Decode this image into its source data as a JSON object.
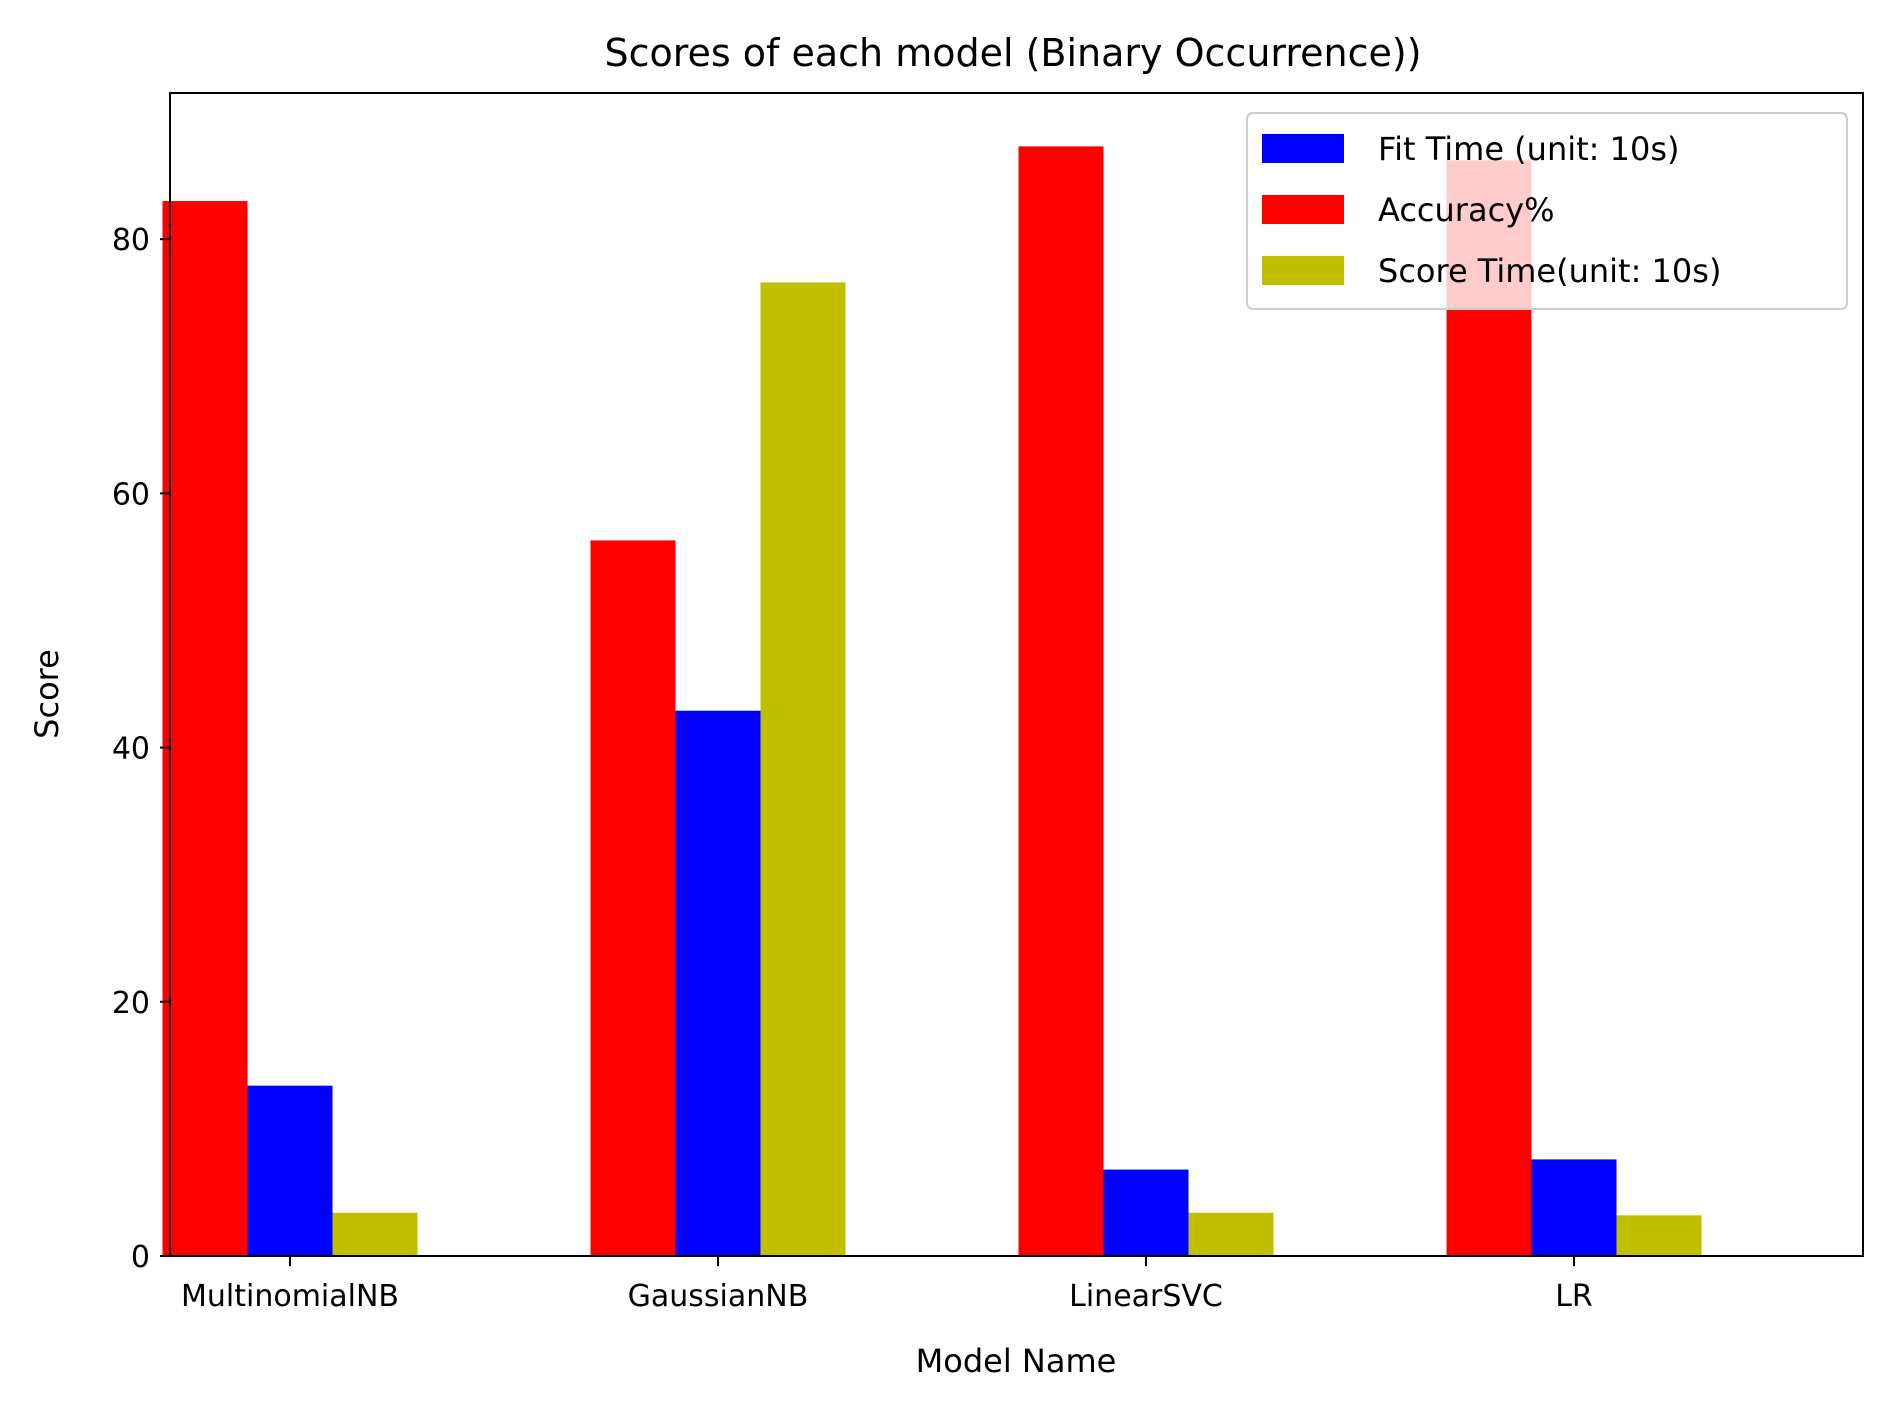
{
  "chart_data": {
    "type": "bar",
    "title": "Scores of each model (Binary Occurrence))",
    "xlabel": "Model Name",
    "ylabel": "Score",
    "categories": [
      "MultinomialNB",
      "GaussianNB",
      "LinearSVC",
      "LR"
    ],
    "series": [
      {
        "name": "Accuracy%",
        "color": "#ff0000",
        "values": [
          83.0,
          56.3,
          87.3,
          86.2
        ]
      },
      {
        "name": "Fit Time (unit: 10s)",
        "color": "#0000ff",
        "values": [
          13.4,
          42.9,
          6.8,
          7.6
        ]
      },
      {
        "name": "Score Time(unit: 10s)",
        "color": "#bfbf00",
        "values": [
          3.4,
          76.6,
          3.4,
          3.2
        ]
      }
    ],
    "legend_order": [
      "Fit Time (unit: 10s)",
      "Accuracy%",
      "Score Time(unit: 10s)"
    ],
    "ylim": [
      0,
      91.5
    ],
    "yticks": [
      0,
      20,
      40,
      60,
      80
    ],
    "grid": false,
    "legend_position": "top-right"
  }
}
